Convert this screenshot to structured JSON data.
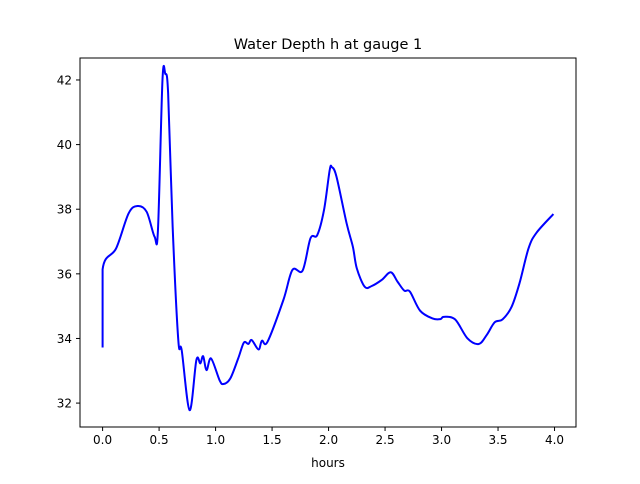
{
  "chart_data": {
    "type": "line",
    "title": "Water Depth h at gauge 1",
    "xlabel": "hours",
    "ylabel": "",
    "xlim": [
      -0.2,
      4.19
    ],
    "ylim": [
      31.26,
      42.68
    ],
    "xticks": [
      0.0,
      0.5,
      1.0,
      1.5,
      2.0,
      2.5,
      3.0,
      3.5,
      4.0
    ],
    "xtick_labels": [
      "0.0",
      "0.5",
      "1.0",
      "1.5",
      "2.0",
      "2.5",
      "3.0",
      "3.5",
      "4.0"
    ],
    "yticks": [
      32,
      34,
      36,
      38,
      40,
      42
    ],
    "ytick_labels": [
      "32",
      "34",
      "36",
      "38",
      "40",
      "42"
    ],
    "grid": false,
    "series": [
      {
        "name": "h",
        "color": "#0000ff",
        "x": [
          0,
          0,
          0.12,
          0.23,
          0.31,
          0.39,
          0.46,
          0.49,
          0.53,
          0.555,
          0.58,
          0.62,
          0.67,
          0.7,
          0.77,
          0.83,
          0.865,
          0.89,
          0.92,
          0.96,
          1.035,
          1.07,
          1.13,
          1.2,
          1.25,
          1.29,
          1.32,
          1.38,
          1.41,
          1.46,
          1.6,
          1.68,
          1.77,
          1.84,
          1.9,
          1.96,
          2.01,
          2.03,
          2.07,
          2.16,
          2.215,
          2.25,
          2.32,
          2.38,
          2.47,
          2.55,
          2.61,
          2.67,
          2.72,
          2.81,
          2.92,
          2.99,
          3.02,
          3.12,
          3.23,
          3.33,
          3.4,
          3.47,
          3.54,
          3.62,
          3.69,
          3.77,
          3.84,
          3.99
        ],
        "y": [
          33.72,
          36.14,
          36.79,
          37.87,
          38.1,
          37.92,
          37.15,
          37.36,
          42.0,
          42.19,
          41.59,
          37.46,
          33.95,
          33.64,
          31.78,
          33.33,
          33.23,
          33.45,
          33.02,
          33.38,
          32.71,
          32.59,
          32.76,
          33.38,
          33.87,
          33.83,
          33.95,
          33.66,
          33.93,
          33.9,
          35.19,
          36.12,
          36.1,
          37.1,
          37.2,
          37.98,
          39.21,
          39.3,
          39.01,
          37.56,
          36.84,
          36.17,
          35.6,
          35.62,
          35.81,
          36.05,
          35.76,
          35.48,
          35.45,
          34.86,
          34.62,
          34.6,
          34.67,
          34.59,
          34.0,
          33.83,
          34.11,
          34.5,
          34.59,
          34.98,
          35.71,
          36.79,
          37.27,
          37.85
        ]
      }
    ]
  }
}
